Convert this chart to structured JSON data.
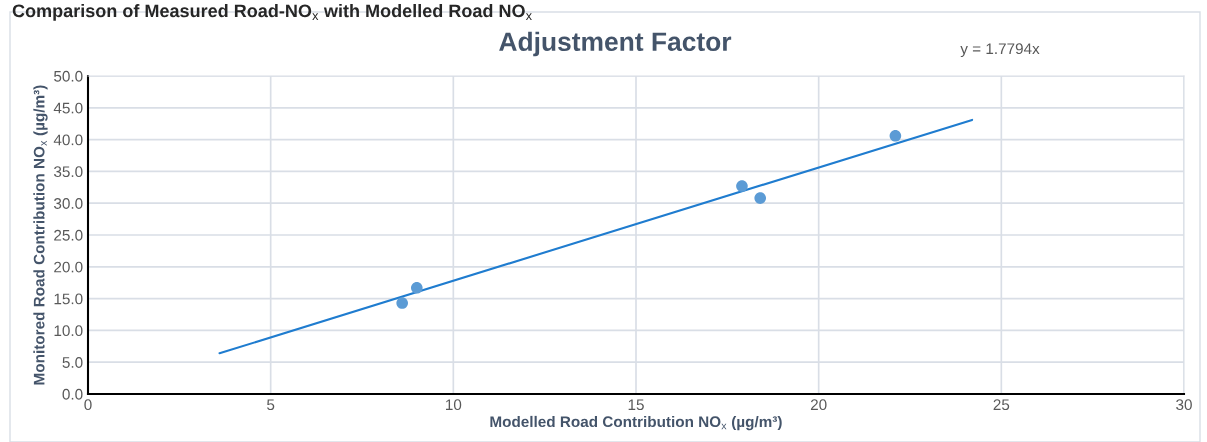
{
  "chart_data": {
    "type": "scatter",
    "title": "Comparison of Measured Road-NO$_{x}$ with Modelled Road NO$_{x}$",
    "subtitle": "Adjustment Factor",
    "xlabel": "Modelled Road Contribution NO$_{x}$ (µg/m³)",
    "ylabel": "Monitored Road Contribution NO$_{x}$ (µg/m³)",
    "annotations": [
      "y = 1.7794x"
    ],
    "series": [
      {
        "color": "#5b9bd5",
        "marker": "circle",
        "x": [
          8.6,
          9.0,
          17.9,
          18.4,
          22.1
        ],
        "values": [
          14.3,
          16.7,
          32.7,
          30.8,
          40.6
        ]
      },
      {
        "type": "line",
        "color": "#1f7ccf",
        "line_style": "solid",
        "x": [
          3.6,
          24.2
        ],
        "values": [
          6.4,
          43.1
        ]
      }
    ],
    "xlim": [
      0,
      30
    ],
    "xticks": [
      0,
      5,
      10,
      15,
      20,
      25,
      30
    ],
    "ylim": [
      0,
      50
    ],
    "yticks": [
      {
        "value": 0,
        "label": "0.0"
      },
      {
        "value": 5,
        "label": "5.0"
      },
      {
        "value": 10,
        "label": "10.0"
      },
      {
        "value": 15,
        "label": "15.0"
      },
      {
        "value": 20,
        "label": "20.0"
      },
      {
        "value": 25,
        "label": "25.0"
      },
      {
        "value": 30,
        "label": "30.0"
      },
      {
        "value": 35,
        "label": "35.0"
      },
      {
        "value": 40,
        "label": "40.0"
      },
      {
        "value": 45,
        "label": "45.0"
      },
      {
        "value": 50,
        "label": "50.0"
      }
    ],
    "grid": true
  }
}
